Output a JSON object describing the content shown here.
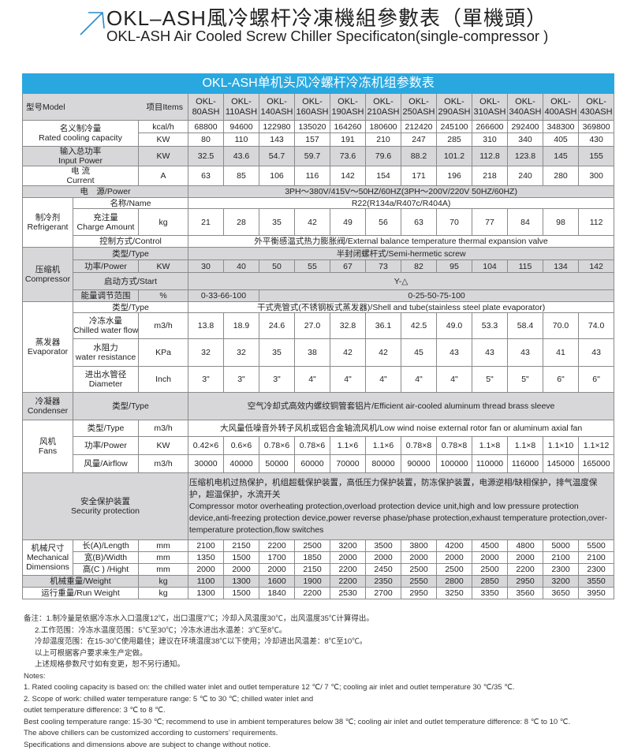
{
  "header": {
    "title_cn": "OKL–ASH風冷螺杆冷凍機組參數表（單機頭）",
    "title_en": "OKL-ASH Air Cooled Screw Chiller Specificaton(single-compressor )",
    "accent": "#2a8ac8"
  },
  "table": {
    "title": "OKL-ASH单机头风冷螺杆冷冻机组参数表",
    "title_bg": "#29a8e0",
    "model_label": "型号Model",
    "items_label": "项目Items",
    "models": [
      "OKL-80ASH",
      "OKL-110ASH",
      "OKL-140ASH",
      "OKL-160ASH",
      "OKL-190ASH",
      "OKL-210ASH",
      "OKL-250ASH",
      "OKL-290ASH",
      "OKL-310ASH",
      "OKL-340ASH",
      "OKL-400ASH",
      "OKL-430ASH"
    ],
    "labels": {
      "cooling_cn": "名义制冷量",
      "cooling_en": "Rated cooling capacity",
      "input_cn": "输入总功率",
      "input_en": "Input Power",
      "current_cn": "电 流",
      "current_en": "Current",
      "power_supply": "电　源/Power",
      "refrigerant_cn": "制冷剂",
      "refrigerant_en": "Refrigerant",
      "name": "名称/Name",
      "charge_cn": "充注量",
      "charge_en": "Charge Amount",
      "control": "控制方式/Control",
      "compressor_cn": "压缩机",
      "compressor_en": "Compressor",
      "type": "类型/Type",
      "power": "功率/Power",
      "start": "启动方式/Start",
      "capacity_range": "能量调节范围",
      "evaporator_cn": "蒸发器",
      "evaporator_en": "Evaporator",
      "chilled_cn": "冷冻水量",
      "chilled_en": "Chilled water flow",
      "resist_cn": "水阻力",
      "resist_en": "water resistance",
      "diam_cn": "进出水管径",
      "diam_en": "Diameter",
      "condenser_cn": "冷凝器",
      "condenser_en": "Condenser",
      "fans_cn": "风机",
      "fans_en": "Fans",
      "airflow": "风量/Airflow",
      "security_cn": "安全保护装置",
      "security_en": "Security protection",
      "dims_cn": "机械尺寸",
      "dims_en1": "Mechanical",
      "dims_en2": "Dimensions",
      "length": "长(A)/Length",
      "width": "宽(B)/Width",
      "height": "高(C ) /Hight",
      "weight": "机械重量/Weight",
      "run_weight": "运行重量/Run Weight"
    },
    "units": {
      "kcal": "kcal/h",
      "kw": "KW",
      "a": "A",
      "kg": "kg",
      "pct": "%",
      "m3h": "m3/h",
      "kpa": "KPa",
      "inch": "Inch",
      "mm": "mm"
    },
    "spans": {
      "power_supply": "3PH～380V/415V～50HZ/60HZ(3PH～200V/220V   50HZ/60HZ)",
      "refrigerant_name": "R22(R134a/R407c/R404A)",
      "control": "外平衡感温式热力膨胀阀/External balance temperature thermal expansion valve",
      "compressor_type": "半封闭螺杆式/Semi-hermetic screw",
      "start": "Y-△",
      "capacity_range_1": "0-33-66-100",
      "capacity_range_2": "0-25-50-75-100",
      "evaporator_type": "干式壳管式(不锈钢板式蒸发器)/Shell and tube(stainless steel plate evaporator)",
      "condenser_type": "空气冷却式高效内螺纹铜管套铝片/Efficient air-cooled aluminum thread brass sleeve",
      "fan_type": "大风量低噪音外转子风机或铝合金轴流风机/Low wind noise external rotor fan or aluminum axial fan",
      "security_cn": "压缩机电机过热保护，机组超载保护装置，高低压力保护装置，防冻保护装置，电源逆相/缺相保护，排气温度保护，超温保护，水流开关",
      "security_en": "Compressor motor overheating protection,overload protection device unit,high and low pressure protection device,anti-freezing protection device,power reverse phase/phase protection,exhaust temperature protection,over-temperature protection,flow switches"
    },
    "rows": {
      "kcal": [
        "68800",
        "94600",
        "122980",
        "135020",
        "164260",
        "180600",
        "212420",
        "245100",
        "266600",
        "292400",
        "348300",
        "369800"
      ],
      "kw": [
        "80",
        "110",
        "143",
        "157",
        "191",
        "210",
        "247",
        "285",
        "310",
        "340",
        "405",
        "430"
      ],
      "input": [
        "32.5",
        "43.6",
        "54.7",
        "59.7",
        "73.6",
        "79.6",
        "88.2",
        "101.2",
        "112.8",
        "123.8",
        "145",
        "155"
      ],
      "current": [
        "63",
        "85",
        "106",
        "116",
        "142",
        "154",
        "171",
        "196",
        "218",
        "240",
        "280",
        "300"
      ],
      "charge": [
        "21",
        "28",
        "35",
        "42",
        "49",
        "56",
        "63",
        "70",
        "77",
        "84",
        "98",
        "112"
      ],
      "comp_power": [
        "30",
        "40",
        "50",
        "55",
        "67",
        "73",
        "82",
        "95",
        "104",
        "115",
        "134",
        "142"
      ],
      "chilled": [
        "13.8",
        "18.9",
        "24.6",
        "27.0",
        "32.8",
        "36.1",
        "42.5",
        "49.0",
        "53.3",
        "58.4",
        "70.0",
        "74.0"
      ],
      "resist": [
        "32",
        "32",
        "35",
        "38",
        "42",
        "42",
        "45",
        "43",
        "43",
        "43",
        "41",
        "43"
      ],
      "diam": [
        "3\"",
        "3\"",
        "3\"",
        "4\"",
        "4\"",
        "4\"",
        "4\"",
        "4\"",
        "5\"",
        "5\"",
        "6\"",
        "6\""
      ],
      "fan_power": [
        "0.42×6",
        "0.6×6",
        "0.78×6",
        "0.78×6",
        "1.1×6",
        "1.1×6",
        "0.78×8",
        "0.78×8",
        "1.1×8",
        "1.1×8",
        "1.1×10",
        "1.1×12"
      ],
      "airflow": [
        "30000",
        "40000",
        "50000",
        "60000",
        "70000",
        "80000",
        "90000",
        "100000",
        "110000",
        "116000",
        "145000",
        "165000"
      ],
      "length": [
        "2100",
        "2150",
        "2200",
        "2500",
        "3200",
        "3500",
        "3800",
        "4200",
        "4500",
        "4800",
        "5000",
        "5500"
      ],
      "width": [
        "1350",
        "1500",
        "1700",
        "1850",
        "2000",
        "2000",
        "2000",
        "2000",
        "2000",
        "2000",
        "2100",
        "2100"
      ],
      "height": [
        "2000",
        "2000",
        "2000",
        "2150",
        "2200",
        "2450",
        "2500",
        "2500",
        "2500",
        "2200",
        "2300",
        "2300"
      ],
      "weight": [
        "1100",
        "1300",
        "1600",
        "1900",
        "2200",
        "2350",
        "2550",
        "2800",
        "2850",
        "2950",
        "3200",
        "3550"
      ],
      "run_weight": [
        "1300",
        "1500",
        "1840",
        "2200",
        "2530",
        "2700",
        "2950",
        "3250",
        "3350",
        "3560",
        "3650",
        "3950"
      ]
    }
  },
  "notes": {
    "cn": [
      "备注：1.制冷量是依据冷冻水入口温度12℃，出口温度7℃；冷却入风温度30℃，出风温度35℃计算得出。",
      "2.工作范围：冷冻水温度范围：5℃至30℃；冷冻水进出水温差：3℃至8℃。",
      "冷却温度范围：在15-30℃使用最佳；建议在环境温度38℃以下使用；冷却进出风温差：8℃至10℃。",
      "以上可根据客户要求来生产定做。",
      "上述规格参数尺寸如有变更，恕不另行通知。"
    ],
    "en": [
      "Notes:",
      "1. Rated cooling capacity is based on: the chilled water inlet and outlet temperature 12 ℃/ 7 ℃; cooling air inlet and outlet temperature 30 ℃/35 ℃.",
      "2. Scope of work: chilled water temperature range: 5 ℃ to 30 ℃; chilled water inlet and",
      "outlet temperature difference: 3 ℃ to 8 ℃.",
      "Best cooling temperature range: 15-30 ℃; recommend to use in ambient temperatures below 38 ℃; cooling air inlet and outlet temperature difference: 8 ℃ to 10 ℃.",
      " The above chillers can be customized according to customers’  requirements.",
      "Specifications and dimensions above are subject to change without notice."
    ]
  }
}
